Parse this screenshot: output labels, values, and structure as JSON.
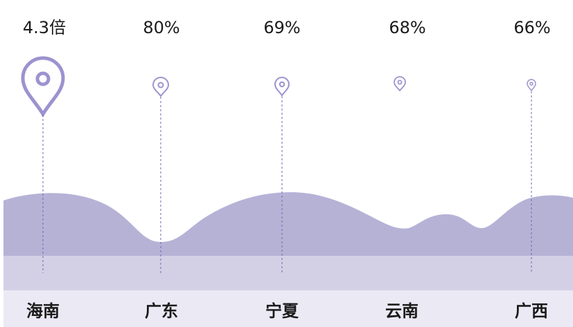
{
  "items": [
    {
      "value": "4.3倍",
      "name": "海南"
    },
    {
      "value": "80%",
      "name": "广东"
    },
    {
      "value": "69%",
      "name": "宁夏"
    },
    {
      "value": "68%",
      "name": "云南"
    },
    {
      "value": "66%",
      "name": "广西"
    }
  ]
}
